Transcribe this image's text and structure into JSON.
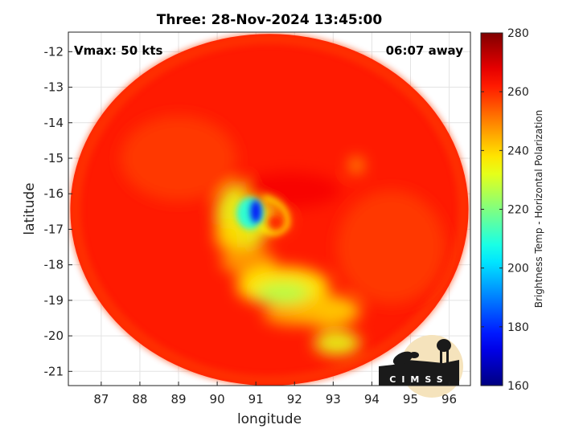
{
  "chart_data": {
    "type": "heatmap",
    "title": "Three: 28-Nov-2024 13:45:00",
    "xlabel": "longitude",
    "ylabel": "latitude",
    "xlim": [
      86.15,
      96.55
    ],
    "ylim": [
      -21.4,
      -11.45
    ],
    "xticks": [
      87,
      88,
      89,
      90,
      91,
      92,
      93,
      94,
      95,
      96
    ],
    "yticks": [
      -12,
      -13,
      -14,
      -15,
      -16,
      -17,
      -18,
      -19,
      -20,
      -21
    ],
    "grid": true,
    "annotations": {
      "vmax": "Vmax: 50 kts",
      "time_away": "06:07 away"
    },
    "colorbar": {
      "label": "Brightness Temp - Horizontal Polarization",
      "range": [
        160,
        280
      ],
      "ticks": [
        280,
        260,
        240,
        220,
        200,
        180,
        160
      ],
      "colormap": "jet"
    },
    "swath": {
      "center_lon": 91.35,
      "center_lat": -16.45,
      "radius_lon": 5.15,
      "radius_lat": 4.95
    },
    "background_temp": 262,
    "features": [
      {
        "lon": 90.7,
        "lat": -16.6,
        "rlon": 0.75,
        "rlat": 0.95,
        "temp": 232
      },
      {
        "lon": 90.85,
        "lat": -16.55,
        "rlon": 0.35,
        "rlat": 0.45,
        "temp": 208
      },
      {
        "lon": 91.0,
        "lat": -16.5,
        "rlon": 0.14,
        "rlat": 0.32,
        "temp": 175
      },
      {
        "lon": 90.3,
        "lat": -17.2,
        "rlon": 0.35,
        "rlat": 0.4,
        "temp": 240
      },
      {
        "lon": 90.8,
        "lat": -17.9,
        "rlon": 0.7,
        "rlat": 0.4,
        "temp": 246
      },
      {
        "lon": 91.7,
        "lat": -18.6,
        "rlon": 1.2,
        "rlat": 0.55,
        "temp": 236
      },
      {
        "lon": 91.7,
        "lat": -18.8,
        "rlon": 0.7,
        "rlat": 0.3,
        "temp": 226
      },
      {
        "lon": 92.8,
        "lat": -19.3,
        "rlon": 0.9,
        "rlat": 0.45,
        "temp": 240
      },
      {
        "lon": 93.1,
        "lat": -20.2,
        "rlon": 0.6,
        "rlat": 0.35,
        "temp": 232
      },
      {
        "lon": 92.0,
        "lat": -19.4,
        "rlon": 0.8,
        "rlat": 0.3,
        "temp": 244
      },
      {
        "lon": 93.6,
        "lat": -15.2,
        "rlon": 0.18,
        "rlat": 0.22,
        "temp": 244
      },
      {
        "lon": 91.6,
        "lat": -16.8,
        "rlon": 0.3,
        "rlat": 0.3,
        "temp": 254
      },
      {
        "lon": 91.9,
        "lat": -15.9,
        "rlon": 1.3,
        "rlat": 0.5,
        "temp": 266
      },
      {
        "lon": 89.0,
        "lat": -15.0,
        "rlon": 1.5,
        "rlat": 1.2,
        "temp": 258
      },
      {
        "lon": 94.5,
        "lat": -17.5,
        "rlon": 1.4,
        "rlat": 1.6,
        "temp": 258
      }
    ]
  },
  "logo": {
    "text": "CIMSS"
  }
}
